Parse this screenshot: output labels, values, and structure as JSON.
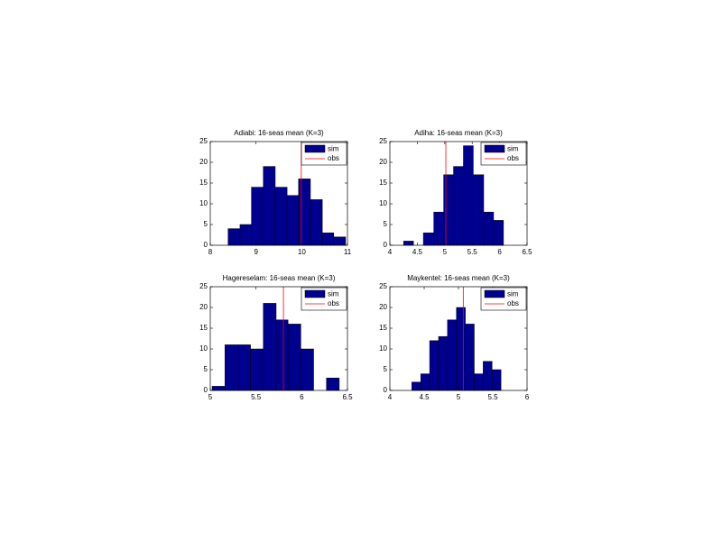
{
  "chart_data": [
    {
      "type": "histogram",
      "title": "Adiabi: 16-seas mean (K=3)",
      "bins": [
        8.39,
        8.65,
        8.9,
        9.16,
        9.42,
        9.68,
        9.93,
        10.19,
        10.45,
        10.7,
        10.96
      ],
      "series": [
        {
          "name": "sim",
          "color": "#00008f",
          "values": [
            4,
            5,
            14,
            19,
            14,
            12,
            16,
            11,
            3,
            2
          ]
        },
        {
          "name": "obs",
          "color": "#ff0000",
          "value": 9.99
        }
      ],
      "xlim": [
        8,
        11
      ],
      "xticks": [
        8,
        9,
        10,
        11
      ],
      "ylim": [
        0,
        25
      ],
      "yticks": [
        0,
        5,
        10,
        15,
        20,
        25
      ],
      "legend": "upper right"
    },
    {
      "type": "histogram",
      "title": "Adiha: 16-seas mean (K=3)",
      "bins": [
        4.25,
        4.43,
        4.61,
        4.8,
        4.98,
        5.16,
        5.34,
        5.52,
        5.71,
        5.89,
        6.07
      ],
      "series": [
        {
          "name": "sim",
          "color": "#00008f",
          "values": [
            1,
            0,
            3,
            8,
            17,
            19,
            24,
            17,
            8,
            6
          ]
        },
        {
          "name": "obs",
          "color": "#ff0000",
          "value": 5.02
        }
      ],
      "xlim": [
        4,
        6.5
      ],
      "xticks": [
        4,
        4.5,
        5,
        5.5,
        6,
        6.5
      ],
      "ylim": [
        0,
        25
      ],
      "yticks": [
        0,
        5,
        10,
        15,
        20,
        25
      ],
      "legend": "upper right"
    },
    {
      "type": "histogram",
      "title": "Hagereselam: 16-seas mean (K=3)",
      "bins": [
        5.02,
        5.16,
        5.3,
        5.44,
        5.58,
        5.72,
        5.85,
        5.99,
        6.13,
        6.27,
        6.41
      ],
      "series": [
        {
          "name": "sim",
          "color": "#00008f",
          "values": [
            1,
            11,
            11,
            10,
            21,
            17,
            16,
            10,
            0,
            3
          ]
        },
        {
          "name": "obs",
          "color": "#ff0000",
          "value": 5.8
        }
      ],
      "xlim": [
        5,
        6.5
      ],
      "xticks": [
        5,
        5.5,
        6,
        6.5
      ],
      "ylim": [
        0,
        25
      ],
      "yticks": [
        0,
        5,
        10,
        15,
        20,
        25
      ],
      "legend": "upper right"
    },
    {
      "type": "histogram",
      "title": "Maykentel: 16-seas mean (K=3)",
      "bins": [
        4.32,
        4.45,
        4.58,
        4.71,
        4.84,
        4.97,
        5.1,
        5.23,
        5.36,
        5.49,
        5.62
      ],
      "series": [
        {
          "name": "sim",
          "color": "#00008f",
          "values": [
            2,
            4,
            12,
            13,
            17,
            20,
            16,
            4,
            7,
            5
          ]
        },
        {
          "name": "obs",
          "color": "#ff0000",
          "value": 5.07
        }
      ],
      "xlim": [
        4,
        6
      ],
      "xticks": [
        4,
        4.5,
        5,
        5.5,
        6
      ],
      "ylim": [
        0,
        25
      ],
      "yticks": [
        0,
        5,
        10,
        15,
        20,
        25
      ],
      "legend": "upper right"
    }
  ]
}
